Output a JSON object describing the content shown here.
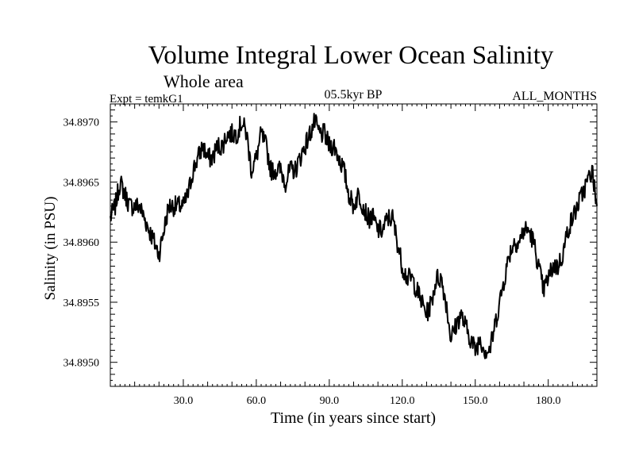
{
  "header": {
    "title": "Volume Integral Lower Ocean Salinity",
    "subtitle": "Whole area",
    "expt": "Expt = temkG1",
    "period": "05.5kyr BP",
    "months": "ALL_MONTHS"
  },
  "chart_data": {
    "type": "line",
    "title": "Volume Integral Lower Ocean Salinity",
    "subtitle": "Whole area",
    "xlabel": "Time (in years since start)",
    "ylabel": "Salinity (in PSU)",
    "xlim": [
      0,
      200
    ],
    "ylim": [
      34.8948,
      34.89715
    ],
    "xticks": [
      30,
      60,
      90,
      120,
      150,
      180
    ],
    "xtick_labels": [
      "30.0",
      "60.0",
      "90.0",
      "120.0",
      "150.0",
      "180.0"
    ],
    "yticks": [
      34.895,
      34.8955,
      34.896,
      34.8965,
      34.897
    ],
    "ytick_labels": [
      "34.8950",
      "34.8955",
      "34.8960",
      "34.8965",
      "34.8970"
    ],
    "grid": false,
    "series": [
      {
        "name": "Salinity",
        "color": "#000000",
        "x": [
          0,
          2,
          4,
          6,
          8,
          10,
          12,
          14,
          16,
          18,
          20,
          22,
          24,
          26,
          28,
          30,
          32,
          34,
          36,
          38,
          40,
          42,
          44,
          46,
          48,
          50,
          52,
          54,
          56,
          58,
          60,
          62,
          64,
          66,
          68,
          70,
          72,
          74,
          76,
          78,
          80,
          82,
          84,
          86,
          88,
          90,
          92,
          94,
          96,
          98,
          100,
          102,
          104,
          106,
          108,
          110,
          112,
          114,
          116,
          118,
          120,
          122,
          124,
          126,
          128,
          130,
          132,
          134,
          136,
          138,
          140,
          142,
          144,
          146,
          148,
          150,
          152,
          154,
          156,
          158,
          160,
          162,
          164,
          166,
          168,
          170,
          172,
          174,
          176,
          178,
          180,
          182,
          184,
          186,
          188,
          190,
          192,
          194,
          196,
          198,
          200
        ],
        "values": [
          34.8962,
          34.8963,
          34.8965,
          34.8964,
          34.8963,
          34.8963,
          34.8963,
          34.8962,
          34.8961,
          34.896,
          34.8959,
          34.8961,
          34.8963,
          34.8963,
          34.8963,
          34.8963,
          34.8964,
          34.8966,
          34.8967,
          34.8968,
          34.8967,
          34.8967,
          34.8968,
          34.8968,
          34.8969,
          34.8969,
          34.8969,
          34.897,
          34.8969,
          34.8966,
          34.8967,
          34.8969,
          34.8968,
          34.8966,
          34.8966,
          34.8966,
          34.8965,
          34.8966,
          34.8966,
          34.8967,
          34.8968,
          34.8969,
          34.897,
          34.8969,
          34.8969,
          34.8968,
          34.8968,
          34.8967,
          34.8966,
          34.8964,
          34.8963,
          34.8964,
          34.8963,
          34.8962,
          34.8962,
          34.8961,
          34.8961,
          34.8962,
          34.8962,
          34.896,
          34.8958,
          34.8957,
          34.8957,
          34.8956,
          34.8955,
          34.8954,
          34.8955,
          34.8957,
          34.8957,
          34.8955,
          34.8952,
          34.8953,
          34.8954,
          34.8953,
          34.8952,
          34.8951,
          34.8952,
          34.8951,
          34.8951,
          34.8953,
          34.8955,
          34.8957,
          34.8959,
          34.896,
          34.896,
          34.8961,
          34.8961,
          34.896,
          34.8958,
          34.8956,
          34.8957,
          34.8958,
          34.8958,
          34.8959,
          34.8961,
          34.8962,
          34.8963,
          34.8964,
          34.8965,
          34.8966,
          34.8963
        ]
      }
    ]
  }
}
